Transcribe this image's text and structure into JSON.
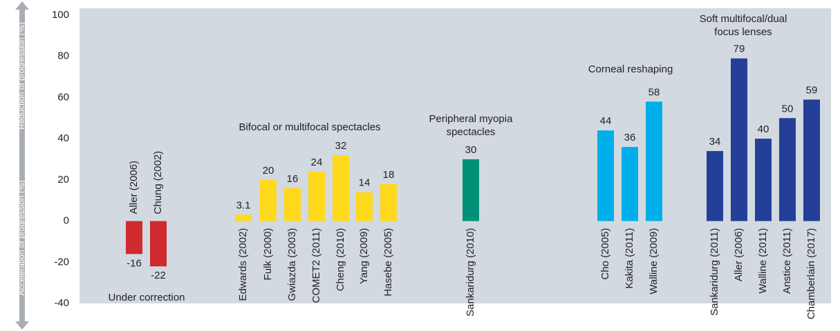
{
  "chart_data": {
    "type": "bar",
    "y_axis_labels": {
      "top": "Reduction of progression (%)",
      "bottom": "Acceleration of progression (%)"
    },
    "ylim": [
      -40,
      100
    ],
    "yticks": [
      -40,
      -20,
      0,
      20,
      40,
      60,
      80,
      100
    ],
    "groups": [
      {
        "name": [
          "Under correction"
        ],
        "color": "#cf2a2e",
        "categories": [
          "Aller (2006)",
          "Chung (2002)"
        ],
        "values": [
          -16,
          -22
        ]
      },
      {
        "name": [
          "Bifocal or multifocal spectacles"
        ],
        "color": "#ffd91c",
        "categories": [
          "Edwards (2002)",
          "Fulk (2000)",
          "Gwiazda (2003)",
          "COMET2 (2011)",
          "Cheng (2010)",
          "Yang (2009)",
          "Hasebe (2005)"
        ],
        "values": [
          3.1,
          20,
          16,
          24,
          32,
          14,
          18
        ]
      },
      {
        "name": [
          "Peripheral myopia",
          "spectacles"
        ],
        "color": "#009178",
        "categories": [
          "Sankaridurg (2010)"
        ],
        "values": [
          30
        ]
      },
      {
        "name": [
          "Corneal reshaping"
        ],
        "color": "#00aeea",
        "categories": [
          "Cho (2005)",
          "Kakita (2011)",
          "Walline (2009)"
        ],
        "values": [
          44,
          36,
          58
        ]
      },
      {
        "name": [
          "Soft multifocal/dual",
          "focus lenses"
        ],
        "color": "#233f97",
        "categories": [
          "Sankaridurg (2011)",
          "Aller (2006)",
          "Walline (2011)",
          "Anstice (2011)",
          "Chamberlain (2017)"
        ],
        "values": [
          34,
          79,
          40,
          50,
          59
        ]
      }
    ]
  }
}
